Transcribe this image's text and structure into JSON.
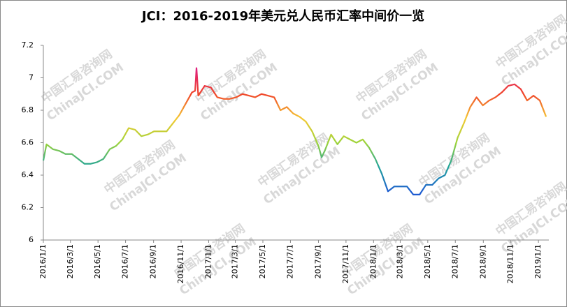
{
  "chart_data": {
    "type": "line",
    "title": "JCI：2016-2019年美元兑人民币汇率中间价一览",
    "watermark": {
      "cn": "中国汇易咨询网",
      "en": "ChinaJCI.COM"
    },
    "x": [
      "2016/1/1",
      "2016/1/8",
      "2016/1/22",
      "2016/2/5",
      "2016/2/19",
      "2016/3/4",
      "2016/3/18",
      "2016/4/1",
      "2016/4/15",
      "2016/4/29",
      "2016/5/13",
      "2016/5/27",
      "2016/6/10",
      "2016/6/24",
      "2016/7/8",
      "2016/7/22",
      "2016/8/5",
      "2016/8/19",
      "2016/9/2",
      "2016/9/16",
      "2016/9/30",
      "2016/10/14",
      "2016/10/28",
      "2016/11/11",
      "2016/11/25",
      "2016/12/2",
      "2016/12/5",
      "2016/12/9",
      "2016/12/23",
      "2017/1/6",
      "2017/1/20",
      "2017/2/3",
      "2017/2/17",
      "2017/3/3",
      "2017/3/17",
      "2017/3/31",
      "2017/4/14",
      "2017/4/28",
      "2017/5/12",
      "2017/5/26",
      "2017/6/9",
      "2017/6/23",
      "2017/7/7",
      "2017/7/21",
      "2017/8/4",
      "2017/8/18",
      "2017/9/1",
      "2017/9/8",
      "2017/9/15",
      "2017/9/29",
      "2017/10/13",
      "2017/10/27",
      "2017/11/10",
      "2017/11/24",
      "2017/12/8",
      "2017/12/22",
      "2018/1/5",
      "2018/1/19",
      "2018/2/2",
      "2018/2/16",
      "2018/3/2",
      "2018/3/16",
      "2018/3/30",
      "2018/4/13",
      "2018/4/27",
      "2018/5/11",
      "2018/5/25",
      "2018/6/8",
      "2018/6/22",
      "2018/7/6",
      "2018/7/20",
      "2018/8/3",
      "2018/8/17",
      "2018/8/31",
      "2018/9/14",
      "2018/9/28",
      "2018/10/12",
      "2018/10/26",
      "2018/11/9",
      "2018/11/23",
      "2018/12/7",
      "2018/12/21",
      "2019/1/4",
      "2019/1/18"
    ],
    "series": [
      {
        "values": [
          6.49,
          6.59,
          6.56,
          6.55,
          6.53,
          6.53,
          6.5,
          6.47,
          6.47,
          6.48,
          6.5,
          6.56,
          6.58,
          6.62,
          6.69,
          6.68,
          6.64,
          6.65,
          6.67,
          6.67,
          6.67,
          6.72,
          6.77,
          6.84,
          6.91,
          6.92,
          7.06,
          6.89,
          6.95,
          6.94,
          6.88,
          6.87,
          6.87,
          6.88,
          6.9,
          6.89,
          6.88,
          6.9,
          6.89,
          6.88,
          6.8,
          6.82,
          6.78,
          6.76,
          6.73,
          6.67,
          6.58,
          6.51,
          6.55,
          6.65,
          6.59,
          6.64,
          6.62,
          6.6,
          6.62,
          6.57,
          6.5,
          6.41,
          6.3,
          6.33,
          6.33,
          6.33,
          6.28,
          6.28,
          6.34,
          6.34,
          6.38,
          6.4,
          6.49,
          6.63,
          6.72,
          6.82,
          6.88,
          6.83,
          6.86,
          6.88,
          6.91,
          6.95,
          6.96,
          6.93,
          6.86,
          6.89,
          6.86,
          6.76
        ]
      }
    ],
    "colors": [
      "#1a3fd6",
      "#1a3fd6",
      "#1f5fd0",
      "#1fa39a",
      "#9ed43a",
      "#f5c832",
      "#f0452a",
      "#e0207a",
      "#d01aa0"
    ],
    "xlim": [
      "2016/1/1",
      "2019/1/24"
    ],
    "xticks": [
      "2016/1/1",
      "2016/3/1",
      "2016/5/1",
      "2016/7/1",
      "2016/9/1",
      "2016/11/1",
      "2017/1/1",
      "2017/3/1",
      "2017/5/1",
      "2017/7/1",
      "2017/9/1",
      "2017/11/1",
      "2018/1/1",
      "2018/3/1",
      "2018/5/1",
      "2018/7/1",
      "2018/9/1",
      "2018/11/1",
      "2019/1/1"
    ],
    "ylim": [
      6,
      7.2
    ],
    "yticks": [
      6,
      6.2,
      6.4,
      6.6,
      6.8,
      7,
      7.2
    ],
    "grid": false
  }
}
